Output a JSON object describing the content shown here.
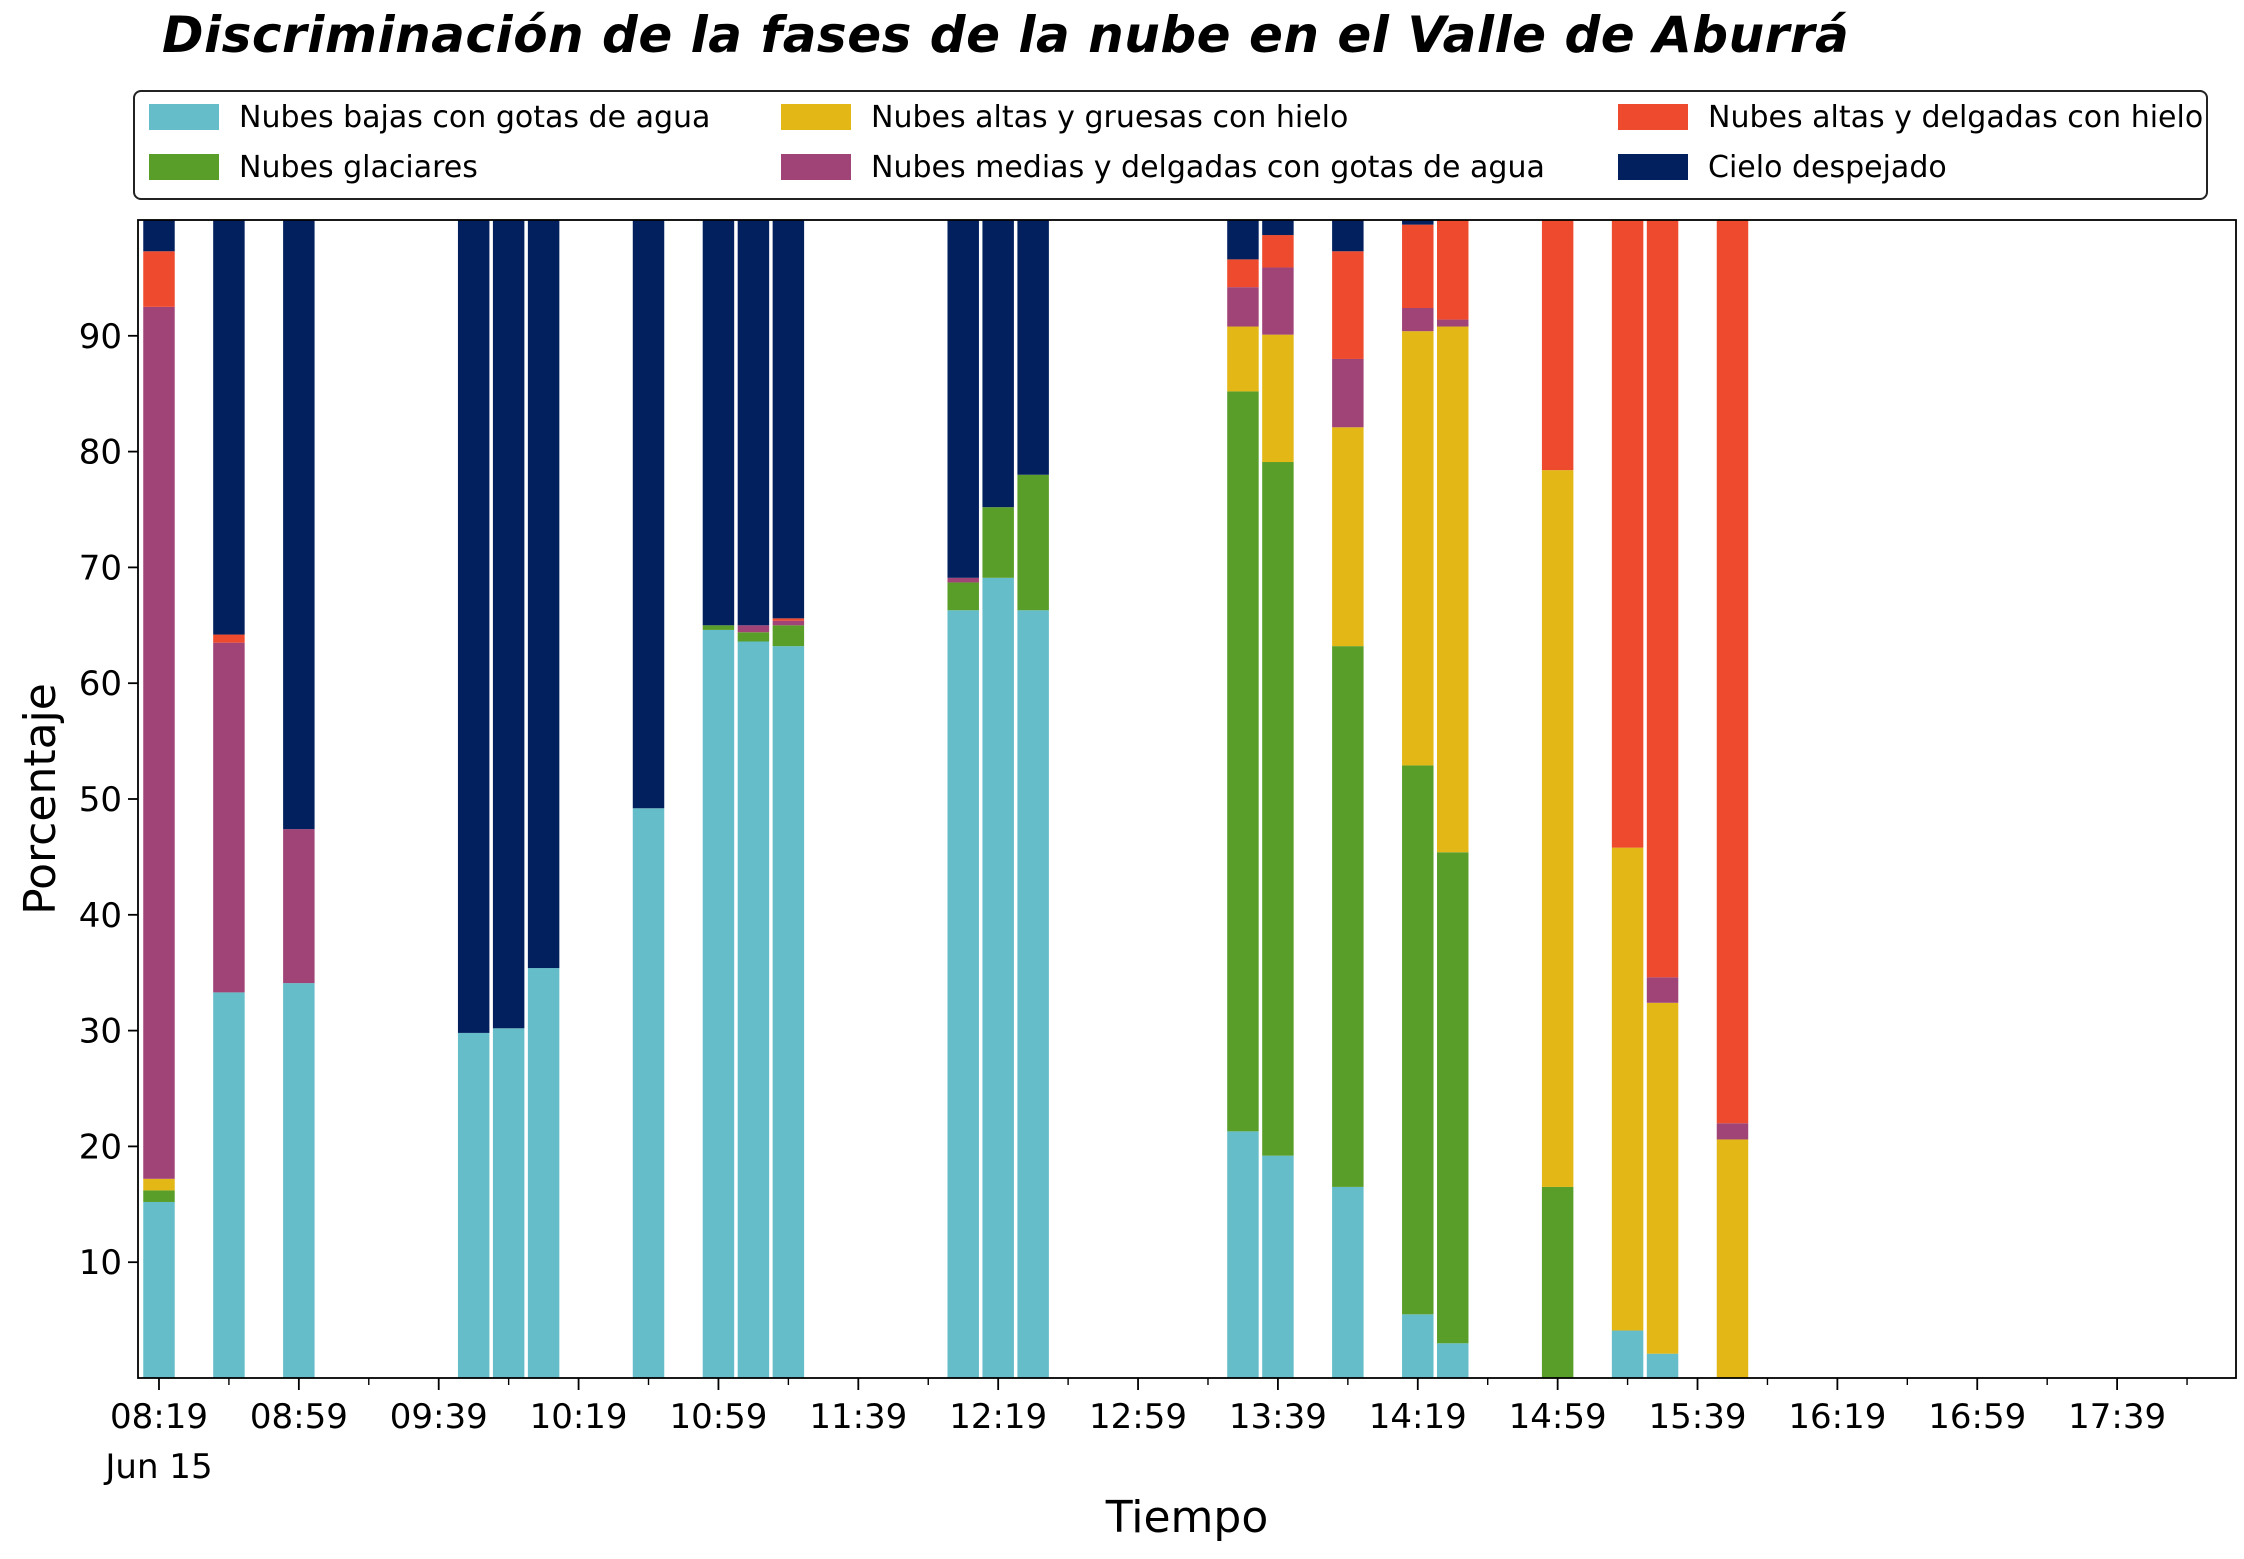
{
  "chart_data": {
    "type": "bar",
    "stacked": true,
    "title": "Discriminación de la fases de la nube en el Valle de Aburrá",
    "xlabel": "Tiempo",
    "ylabel": "Porcentaje",
    "ylim": [
      0,
      100
    ],
    "xlim": [
      "08:13",
      "18:13"
    ],
    "date_label": "Jun 15",
    "grid": false,
    "legend_position": "top",
    "y_ticks": [
      10,
      20,
      30,
      40,
      50,
      60,
      70,
      80,
      90
    ],
    "x_ticks": [
      "08:19",
      "08:59",
      "09:39",
      "10:19",
      "10:59",
      "11:39",
      "12:19",
      "12:59",
      "13:39",
      "14:19",
      "14:59",
      "15:39",
      "16:19",
      "16:59",
      "17:39"
    ],
    "bar_width_minutes": 9,
    "series": [
      {
        "name": "Nubes bajas con gotas de agua",
        "color": "#64BDC8"
      },
      {
        "name": "Nubes glaciares",
        "color": "#5A9E2A"
      },
      {
        "name": "Nubes altas y gruesas con hielo",
        "color": "#E3B715"
      },
      {
        "name": "Nubes medias y delgadas con gotas de agua",
        "color": "#A04478"
      },
      {
        "name": "Nubes altas y delgadas con hielo",
        "color": "#EE4A2D"
      },
      {
        "name": "Cielo despejado",
        "color": "#03205E"
      }
    ],
    "bars": [
      {
        "time": "08:19",
        "values": [
          15.2,
          1.0,
          1.0,
          75.3,
          4.8,
          2.7
        ]
      },
      {
        "time": "08:39",
        "values": [
          33.3,
          0,
          0,
          30.2,
          0.7,
          35.8
        ]
      },
      {
        "time": "08:59",
        "values": [
          34.1,
          0,
          0,
          13.3,
          0,
          52.6
        ]
      },
      {
        "time": "09:49",
        "values": [
          29.8,
          0,
          0,
          0,
          0,
          70.2
        ]
      },
      {
        "time": "09:59",
        "values": [
          30.2,
          0,
          0,
          0,
          0,
          69.8
        ]
      },
      {
        "time": "10:09",
        "values": [
          35.4,
          0,
          0,
          0,
          0,
          64.6
        ]
      },
      {
        "time": "10:39",
        "values": [
          49.2,
          0,
          0,
          0,
          0,
          50.8
        ]
      },
      {
        "time": "10:59",
        "values": [
          64.6,
          0.4,
          0,
          0,
          0,
          35.0
        ]
      },
      {
        "time": "11:09",
        "values": [
          63.6,
          0.8,
          0,
          0.6,
          0,
          35.0
        ]
      },
      {
        "time": "11:19",
        "values": [
          63.2,
          1.8,
          0,
          0.4,
          0.2,
          34.4
        ]
      },
      {
        "time": "12:09",
        "values": [
          66.3,
          2.4,
          0,
          0.4,
          0,
          30.9
        ]
      },
      {
        "time": "12:19",
        "values": [
          69.1,
          6.1,
          0,
          0,
          0,
          24.8
        ]
      },
      {
        "time": "12:29",
        "values": [
          66.3,
          11.7,
          0,
          0,
          0,
          22.0
        ]
      },
      {
        "time": "13:29",
        "values": [
          21.3,
          63.9,
          5.6,
          3.4,
          2.4,
          3.4
        ]
      },
      {
        "time": "13:39",
        "values": [
          19.2,
          59.9,
          11.0,
          5.8,
          2.8,
          1.3
        ]
      },
      {
        "time": "13:59",
        "values": [
          16.5,
          46.7,
          18.9,
          5.9,
          9.3,
          2.7
        ]
      },
      {
        "time": "14:19",
        "values": [
          5.5,
          47.4,
          37.5,
          2.0,
          7.2,
          0.4
        ]
      },
      {
        "time": "14:29",
        "values": [
          3.0,
          42.4,
          45.4,
          0.6,
          8.6,
          0
        ]
      },
      {
        "time": "14:59",
        "values": [
          0,
          16.5,
          61.9,
          0,
          21.6,
          0
        ]
      },
      {
        "time": "15:19",
        "values": [
          4.1,
          0,
          41.7,
          0,
          54.2,
          0
        ]
      },
      {
        "time": "15:29",
        "values": [
          2.1,
          0,
          30.3,
          2.2,
          65.4,
          0
        ]
      },
      {
        "time": "15:49",
        "values": [
          0,
          0,
          20.6,
          1.4,
          78.0,
          0
        ]
      }
    ]
  }
}
